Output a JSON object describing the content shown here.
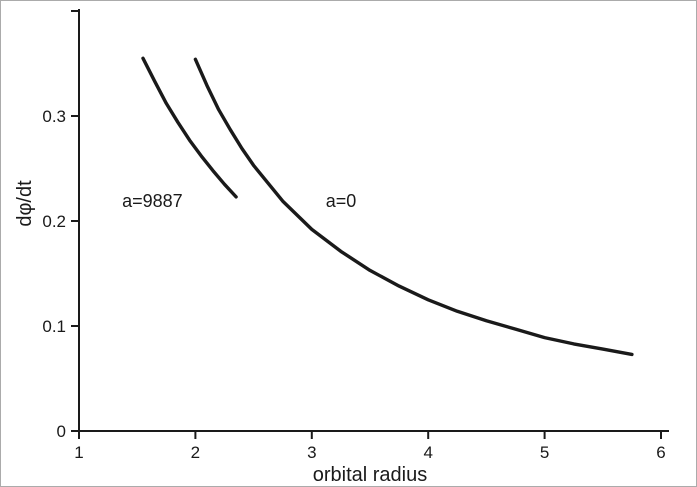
{
  "figure": {
    "background": "#ffffff",
    "border_color": "#ababab",
    "axis_color": "#1a1a1a",
    "text_color": "#1a1a1a"
  },
  "chart_data": {
    "type": "line",
    "title": "",
    "xlabel": "orbital radius",
    "ylabel": "dφ/dt",
    "xlim": [
      1,
      6
    ],
    "ylim": [
      0,
      0.4
    ],
    "grid": false,
    "legend": "none (inline curve labels)",
    "line_color": "#1a1a1a",
    "line_width": 3.4,
    "x_ticks": [
      {
        "v": 1,
        "label": "1"
      },
      {
        "v": 2,
        "label": "2"
      },
      {
        "v": 3,
        "label": "3"
      },
      {
        "v": 4,
        "label": "4"
      },
      {
        "v": 5,
        "label": "5"
      },
      {
        "v": 6,
        "label": "6"
      }
    ],
    "y_ticks": [
      {
        "v": 0,
        "label": "0"
      },
      {
        "v": 0.1,
        "label": "0.1"
      },
      {
        "v": 0.2,
        "label": "0.2"
      },
      {
        "v": 0.3,
        "label": "0.3"
      },
      {
        "v": 0.4,
        "label": ""
      }
    ],
    "series": [
      {
        "name": "a=9887",
        "label": "a=9887",
        "label_pos": [
          1.37,
          0.219
        ],
        "points": [
          [
            1.55,
            0.355
          ],
          [
            1.65,
            0.333
          ],
          [
            1.75,
            0.312
          ],
          [
            1.85,
            0.294
          ],
          [
            1.95,
            0.277
          ],
          [
            2.05,
            0.262
          ],
          [
            2.15,
            0.248
          ],
          [
            2.25,
            0.235
          ],
          [
            2.35,
            0.223
          ]
        ]
      },
      {
        "name": "a=0",
        "label": "a=0",
        "label_pos": [
          3.12,
          0.219
        ],
        "points": [
          [
            2.0,
            0.354
          ],
          [
            2.1,
            0.329
          ],
          [
            2.2,
            0.306
          ],
          [
            2.3,
            0.287
          ],
          [
            2.4,
            0.269
          ],
          [
            2.5,
            0.253
          ],
          [
            2.75,
            0.219
          ],
          [
            3.0,
            0.192
          ],
          [
            3.25,
            0.171
          ],
          [
            3.5,
            0.153
          ],
          [
            3.75,
            0.138
          ],
          [
            4.0,
            0.125
          ],
          [
            4.25,
            0.114
          ],
          [
            4.5,
            0.105
          ],
          [
            4.75,
            0.097
          ],
          [
            5.0,
            0.089
          ],
          [
            5.25,
            0.083
          ],
          [
            5.5,
            0.078
          ],
          [
            5.75,
            0.073
          ]
        ]
      }
    ]
  }
}
